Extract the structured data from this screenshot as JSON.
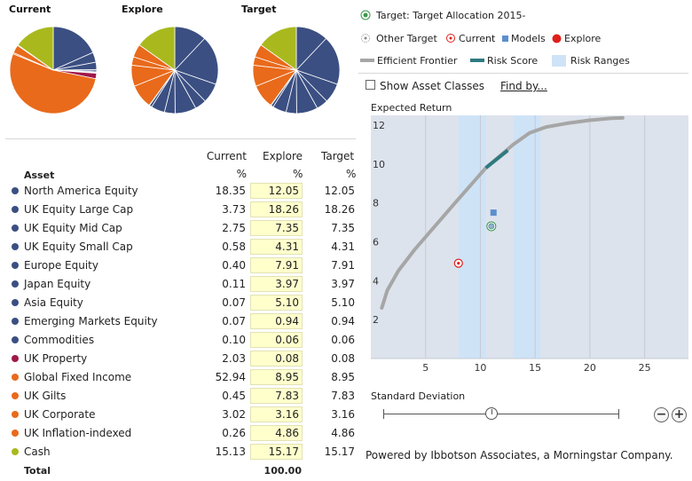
{
  "pies": [
    {
      "title": "Current",
      "slices": [
        {
          "value": 18.35,
          "color": "#3b4f82"
        },
        {
          "value": 3.73,
          "color": "#3b4f82"
        },
        {
          "value": 2.75,
          "color": "#3b4f82"
        },
        {
          "value": 0.58,
          "color": "#3b4f82"
        },
        {
          "value": 0.4,
          "color": "#3b4f82"
        },
        {
          "value": 0.11,
          "color": "#3b4f82"
        },
        {
          "value": 0.07,
          "color": "#3b4f82"
        },
        {
          "value": 0.07,
          "color": "#3b4f82"
        },
        {
          "value": 0.1,
          "color": "#3b4f82"
        },
        {
          "value": 2.03,
          "color": "#a0174a"
        },
        {
          "value": 52.94,
          "color": "#e96a1b"
        },
        {
          "value": 0.45,
          "color": "#e96a1b"
        },
        {
          "value": 3.02,
          "color": "#e96a1b"
        },
        {
          "value": 0.26,
          "color": "#e96a1b"
        },
        {
          "value": 15.13,
          "color": "#a9b91d"
        }
      ]
    },
    {
      "title": "Explore",
      "slices": [
        {
          "value": 12.05,
          "color": "#3b4f82"
        },
        {
          "value": 18.26,
          "color": "#3b4f82"
        },
        {
          "value": 7.35,
          "color": "#3b4f82"
        },
        {
          "value": 4.31,
          "color": "#3b4f82"
        },
        {
          "value": 7.91,
          "color": "#3b4f82"
        },
        {
          "value": 3.97,
          "color": "#3b4f82"
        },
        {
          "value": 5.1,
          "color": "#3b4f82"
        },
        {
          "value": 0.94,
          "color": "#3b4f82"
        },
        {
          "value": 0.06,
          "color": "#3b4f82"
        },
        {
          "value": 0.08,
          "color": "#a0174a"
        },
        {
          "value": 8.95,
          "color": "#e96a1b"
        },
        {
          "value": 7.83,
          "color": "#e96a1b"
        },
        {
          "value": 3.16,
          "color": "#e96a1b"
        },
        {
          "value": 4.86,
          "color": "#e96a1b"
        },
        {
          "value": 15.17,
          "color": "#a9b91d"
        }
      ]
    },
    {
      "title": "Target",
      "slices": [
        {
          "value": 12.05,
          "color": "#3b4f82"
        },
        {
          "value": 18.26,
          "color": "#3b4f82"
        },
        {
          "value": 7.35,
          "color": "#3b4f82"
        },
        {
          "value": 4.31,
          "color": "#3b4f82"
        },
        {
          "value": 7.91,
          "color": "#3b4f82"
        },
        {
          "value": 3.97,
          "color": "#3b4f82"
        },
        {
          "value": 5.1,
          "color": "#3b4f82"
        },
        {
          "value": 0.94,
          "color": "#3b4f82"
        },
        {
          "value": 0.06,
          "color": "#3b4f82"
        },
        {
          "value": 0.08,
          "color": "#a0174a"
        },
        {
          "value": 8.95,
          "color": "#e96a1b"
        },
        {
          "value": 7.83,
          "color": "#e96a1b"
        },
        {
          "value": 3.16,
          "color": "#e96a1b"
        },
        {
          "value": 4.86,
          "color": "#e96a1b"
        },
        {
          "value": 15.17,
          "color": "#a9b91d"
        }
      ]
    }
  ],
  "table": {
    "asset_header": "Asset",
    "current_header": "Current",
    "explore_header": "Explore",
    "target_header": "Target",
    "pct": "%",
    "rows": [
      {
        "name": "North America Equity",
        "color": "#3b4f82",
        "current": "18.35",
        "explore": "12.05",
        "target": "12.05"
      },
      {
        "name": "UK Equity Large Cap",
        "color": "#3b4f82",
        "current": "3.73",
        "explore": "18.26",
        "target": "18.26"
      },
      {
        "name": "UK Equity Mid Cap",
        "color": "#3b4f82",
        "current": "2.75",
        "explore": "7.35",
        "target": "7.35"
      },
      {
        "name": "UK Equity Small Cap",
        "color": "#3b4f82",
        "current": "0.58",
        "explore": "4.31",
        "target": "4.31"
      },
      {
        "name": "Europe Equity",
        "color": "#3b4f82",
        "current": "0.40",
        "explore": "7.91",
        "target": "7.91"
      },
      {
        "name": "Japan Equity",
        "color": "#3b4f82",
        "current": "0.11",
        "explore": "3.97",
        "target": "3.97"
      },
      {
        "name": "Asia Equity",
        "color": "#3b4f82",
        "current": "0.07",
        "explore": "5.10",
        "target": "5.10"
      },
      {
        "name": "Emerging Markets Equity",
        "color": "#3b4f82",
        "current": "0.07",
        "explore": "0.94",
        "target": "0.94"
      },
      {
        "name": "Commodities",
        "color": "#3b4f82",
        "current": "0.10",
        "explore": "0.06",
        "target": "0.06"
      },
      {
        "name": "UK Property",
        "color": "#a0174a",
        "current": "2.03",
        "explore": "0.08",
        "target": "0.08"
      },
      {
        "name": "Global Fixed Income",
        "color": "#e96a1b",
        "current": "52.94",
        "explore": "8.95",
        "target": "8.95"
      },
      {
        "name": "UK Gilts",
        "color": "#e96a1b",
        "current": "0.45",
        "explore": "7.83",
        "target": "7.83"
      },
      {
        "name": "UK Corporate",
        "color": "#e96a1b",
        "current": "3.02",
        "explore": "3.16",
        "target": "3.16"
      },
      {
        "name": "UK Inflation-indexed",
        "color": "#e96a1b",
        "current": "0.26",
        "explore": "4.86",
        "target": "4.86"
      },
      {
        "name": "Cash",
        "color": "#a9b91d",
        "current": "15.13",
        "explore": "15.17",
        "target": "15.17"
      }
    ],
    "total_label": "Total",
    "total_value": "100.00"
  },
  "legend": {
    "target": "Target: Target Allocation 2015-",
    "other_target": "Other Target",
    "current": "Current",
    "models": "Models",
    "explore": "Explore",
    "efficient_frontier": "Efficient Frontier",
    "risk_score": "Risk Score",
    "risk_ranges": "Risk Ranges"
  },
  "controls": {
    "show_asset_classes": "Show Asset Classes",
    "find_by": "Find by...",
    "zoom_out": "−",
    "zoom_in": "+"
  },
  "footer": "Powered by Ibbotson Associates, a Morningstar Company.",
  "colors": {
    "equity": "#3b4f82",
    "property": "#a0174a",
    "fixed_income": "#e96a1b",
    "cash": "#a9b91d",
    "frontier": "#a6a6a6",
    "risk_score": "#2e7a80",
    "risk_range": "#cfe3f7",
    "chart_bg": "#dde3ec",
    "current_marker": "#e0201b",
    "explore_marker": "#e0201b",
    "models_marker": "#5b8fce",
    "target_marker": "#3a9a4a"
  },
  "chart_data": {
    "type": "scatter",
    "title": "Expected Return",
    "xlabel": "Standard Deviation",
    "ylabel": "Expected Return",
    "xlim": [
      0,
      29
    ],
    "ylim": [
      0,
      12.5
    ],
    "xticks": [
      "5",
      "10",
      "15",
      "20",
      "25"
    ],
    "yticks": [
      "2",
      "4",
      "6",
      "8",
      "10",
      "12"
    ],
    "risk_ranges": [
      [
        8.0,
        10.5
      ],
      [
        13.0,
        15.5
      ]
    ],
    "efficient_frontier": [
      [
        1.0,
        2.6
      ],
      [
        1.5,
        3.5
      ],
      [
        2.5,
        4.5
      ],
      [
        4.0,
        5.6
      ],
      [
        6.0,
        6.9
      ],
      [
        8.0,
        8.2
      ],
      [
        10.5,
        9.8
      ],
      [
        13.0,
        11.0
      ],
      [
        14.5,
        11.6
      ],
      [
        16.0,
        11.9
      ],
      [
        18.0,
        12.1
      ],
      [
        20.0,
        12.25
      ],
      [
        22.0,
        12.35
      ],
      [
        23.0,
        12.37
      ]
    ],
    "risk_score_segment": [
      [
        10.5,
        9.8
      ],
      [
        12.5,
        10.7
      ]
    ],
    "current_point": [
      8.0,
      4.9
    ],
    "target_point": [
      11.0,
      6.8
    ],
    "models_point": [
      11.2,
      7.5
    ]
  }
}
